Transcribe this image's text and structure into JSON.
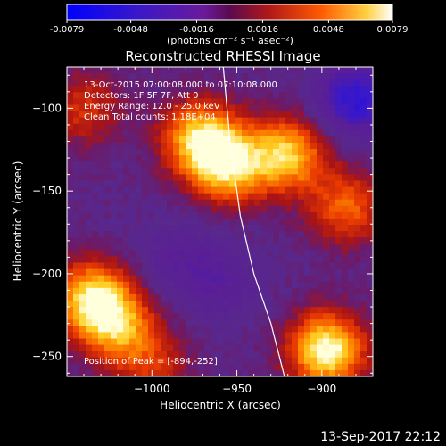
{
  "colorbar": {
    "ticks": [
      "-0.0079",
      "-0.0048",
      "-0.0016",
      "0.0016",
      "0.0048",
      "0.0079"
    ],
    "unit_label": "(photons cm⁻² s⁻¹ asec⁻²)",
    "range": [
      -0.0079,
      0.0079
    ]
  },
  "chart_data": {
    "type": "heatmap",
    "title": "Reconstructed RHESSI Image",
    "xlabel": "Heliocentric X (arcsec)",
    "ylabel": "Heliocentric Y (arcsec)",
    "xlim": [
      -1050,
      -870
    ],
    "ylim": [
      -262,
      -75
    ],
    "x_ticks": [
      -1000,
      -950,
      -900
    ],
    "y_ticks": [
      -100,
      -150,
      -200,
      -250
    ],
    "x_tick_labels": [
      "−1000",
      "−950",
      "−900"
    ],
    "y_tick_labels": [
      "−100",
      "−150",
      "−200",
      "−250"
    ],
    "annotations": [
      "13-Oct-2015 07:00:08.000 to 07:10:08.000",
      "Detectors: 1F 5F 7F, Att 0",
      "Energy Range: 12.0 - 25.0 keV",
      "Clean     Total counts: 1.18E+04"
    ],
    "peak_label": "Position of Peak = [-894,-252]",
    "peak": [
      -894,
      -252
    ],
    "limb_curve": [
      [
        -958,
        -75
      ],
      [
        -954,
        -120
      ],
      [
        -948,
        -165
      ],
      [
        -940,
        -200
      ],
      [
        -930,
        -230
      ],
      [
        -922,
        -262
      ]
    ],
    "sources": [
      {
        "x": -972,
        "y": -118,
        "intensity": 0.8
      },
      {
        "x": -955,
        "y": -135,
        "intensity": 0.8
      },
      {
        "x": -920,
        "y": -128,
        "intensity": 0.8
      },
      {
        "x": -885,
        "y": -160,
        "intensity": 0.55
      },
      {
        "x": -1035,
        "y": -215,
        "intensity": 0.85
      },
      {
        "x": -1020,
        "y": -232,
        "intensity": 0.6
      },
      {
        "x": -897,
        "y": -246,
        "intensity": 1.0
      },
      {
        "x": -1040,
        "y": -100,
        "intensity": 0.4
      },
      {
        "x": -1000,
        "y": -255,
        "intensity": 0.35
      },
      {
        "x": -880,
        "y": -95,
        "intensity": -0.7
      },
      {
        "x": -985,
        "y": -190,
        "intensity": -0.25
      },
      {
        "x": -960,
        "y": -205,
        "intensity": -0.3
      }
    ]
  },
  "footer": {
    "timestamp": "13-Sep-2017 22:12"
  }
}
